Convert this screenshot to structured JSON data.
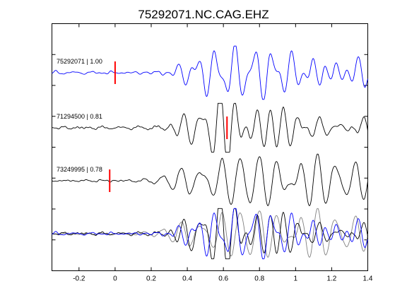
{
  "chart_data": {
    "type": "line",
    "title": "75292071.NC.CAG.EHZ",
    "xlabel": "",
    "ylabel": "",
    "xlim": [
      -0.35,
      1.4
    ],
    "xticks": [
      -0.2,
      0,
      0.2,
      0.4,
      0.6,
      0.8,
      1,
      1.2,
      1.4
    ],
    "xtick_labels": [
      "-0.2",
      "0",
      "0.2",
      "0.4",
      "0.6",
      "0.8",
      "1",
      "1.2",
      "1.4"
    ],
    "grid": false,
    "traces": [
      {
        "label": "75292071 | 1.00",
        "color": "#0000ff",
        "pick_time": 0.0
      },
      {
        "label": "71294500 | 0.81",
        "color": "#000000",
        "pick_time": 0.62
      },
      {
        "label": "73249995 | 0.78",
        "color": "#000000",
        "pick_time": -0.03
      }
    ],
    "overlay": {
      "colors": [
        "#0000ff",
        "#000000",
        "#808080"
      ]
    },
    "pick_color": "#ff0000"
  }
}
